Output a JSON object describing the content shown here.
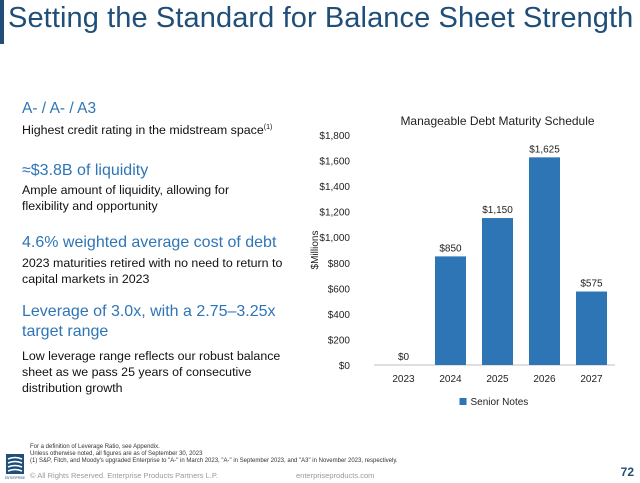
{
  "title": "Setting the Standard for Balance Sheet Strength",
  "points": [
    {
      "heading": "A- / A- / A3",
      "body": "Highest credit rating in the midstream space",
      "footnote": "(1)"
    },
    {
      "heading": "≈$3.8B of liquidity",
      "body": "Ample amount of liquidity, allowing for flexibility and opportunity"
    },
    {
      "heading": "4.6% weighted average cost of debt",
      "body": "2023 maturities retired with no need to return to capital markets in 2023"
    },
    {
      "heading": "Leverage of 3.0x, with a 2.75–3.25x target range",
      "body": "Low leverage range reflects our robust balance sheet as we pass 25 years of consecutive distribution growth"
    }
  ],
  "chart_data": {
    "type": "bar",
    "title": "Manageable Debt Maturity Schedule",
    "ylabel": "$Millions",
    "categories": [
      "2023",
      "2024",
      "2025",
      "2026",
      "2027"
    ],
    "series": [
      {
        "name": "Senior Notes",
        "values": [
          0,
          850,
          1150,
          1625,
          575
        ],
        "color": "#2e75b6"
      }
    ],
    "data_labels": [
      "$0",
      "$850",
      "$1,150",
      "$1,625",
      "$575"
    ],
    "ylim": [
      0,
      1800
    ],
    "yticks": [
      0,
      200,
      400,
      600,
      800,
      1000,
      1200,
      1400,
      1600,
      1800
    ],
    "ytick_labels": [
      "$0",
      "$200",
      "$400",
      "$600",
      "$800",
      "$1,000",
      "$1,200",
      "$1,400",
      "$1,600",
      "$1,800"
    ],
    "grid": false,
    "legend": "bottom"
  },
  "footer": {
    "lines": [
      "For a definition of Leverage Ratio, see Appendix.",
      "Unless otherwise noted, all figures are as of September 30, 2023",
      "(1)  S&P, Fitch, and Moody's upgraded Enterprise to \"A-\" in March 2023, \"A-\" in September 2023, and \"A3\" in November 2023, respectively."
    ],
    "copyright": "© All Rights Reserved. Enterprise Products Partners L.P.",
    "website": "enterpriseproducts.com",
    "page_number": "72",
    "logo_text": "ENTERPRISE"
  },
  "colors": {
    "brand": "#1f4e79",
    "accent": "#2e75b6",
    "bar": "#2e75b6"
  }
}
